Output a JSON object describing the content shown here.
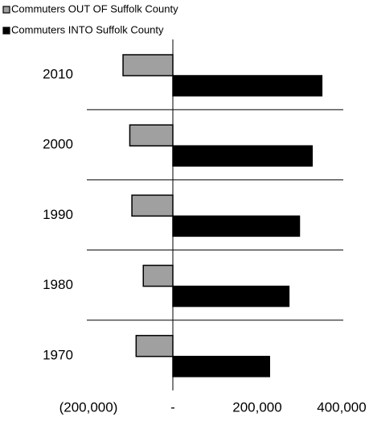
{
  "chart_data": {
    "type": "hbar",
    "categories": [
      "2010",
      "2000",
      "1990",
      "1980",
      "1970"
    ],
    "series": [
      {
        "name": "Commuters OUT OF Suffolk County",
        "color": "#a0a0a0",
        "values": [
          -118000,
          -102000,
          -97000,
          -70000,
          -87000
        ]
      },
      {
        "name": "Commuters INTO Suffolk County",
        "color": "#000000",
        "values": [
          353000,
          330000,
          300000,
          275000,
          229000
        ]
      }
    ],
    "xlim": [
      -200000,
      400000
    ],
    "xticks": [
      {
        "value": -200000,
        "label": "(200,000)"
      },
      {
        "value": 0,
        "label": "-"
      },
      {
        "value": 200000,
        "label": "200,000"
      },
      {
        "value": 400000,
        "label": "400,000"
      }
    ],
    "grid": false,
    "legend": "top-left"
  }
}
